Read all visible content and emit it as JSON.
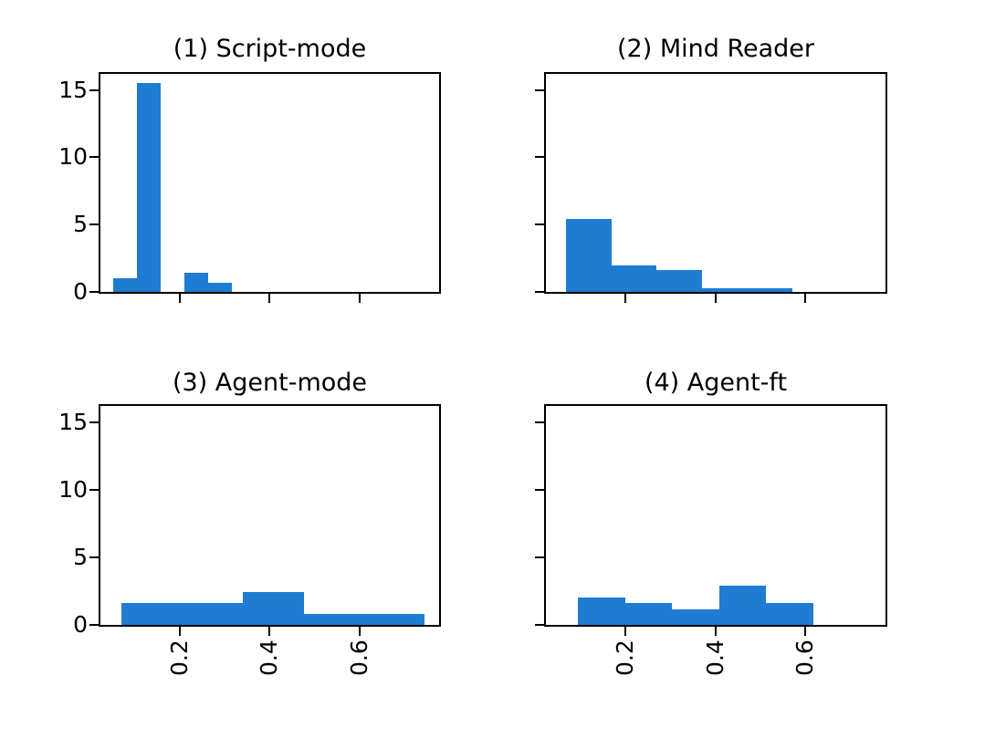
{
  "figure": {
    "background_color": "#ffffff",
    "bar_color": "#1e7cd2",
    "axis_color": "#000000",
    "text_color": "#000000",
    "xlim": [
      0.023,
      0.778
    ],
    "ylim": [
      0,
      16.2
    ],
    "xticks": [
      0.2,
      0.4,
      0.6
    ],
    "xtick_labels": [
      "0.2",
      "0.4",
      "0.6"
    ],
    "yticks": [
      0,
      5,
      10,
      15
    ],
    "ytick_labels": [
      "0",
      "5",
      "10",
      "15"
    ],
    "shared_axes": true,
    "grid": false,
    "legend": false
  },
  "chart_data": [
    {
      "type": "histogram",
      "title": "(1) Script-mode",
      "bin_edges": [
        0.051,
        0.104,
        0.157,
        0.21,
        0.263,
        0.316
      ],
      "densities": [
        1.05,
        15.5,
        0,
        1.45,
        0.65
      ],
      "show_x_tick_labels": false,
      "show_y_tick_labels": true
    },
    {
      "type": "histogram",
      "title": "(2) Mind Reader",
      "bin_edges": [
        0.068,
        0.169,
        0.269,
        0.37,
        0.47,
        0.571
      ],
      "densities": [
        5.45,
        1.95,
        1.6,
        0.28,
        0.28
      ],
      "show_x_tick_labels": false,
      "show_y_tick_labels": false
    },
    {
      "type": "histogram",
      "title": "(3) Agent-mode",
      "bin_edges": [
        0.07,
        0.205,
        0.341,
        0.476,
        0.611,
        0.746
      ],
      "densities": [
        1.6,
        1.6,
        2.42,
        0.8,
        0.8
      ],
      "show_x_tick_labels": true,
      "show_y_tick_labels": true
    },
    {
      "type": "histogram",
      "title": "(4) Agent-ft",
      "bin_edges": [
        0.095,
        0.199,
        0.304,
        0.408,
        0.512,
        0.617
      ],
      "densities": [
        2.0,
        1.61,
        1.15,
        2.87,
        1.61
      ],
      "show_x_tick_labels": true,
      "show_y_tick_labels": false
    }
  ]
}
